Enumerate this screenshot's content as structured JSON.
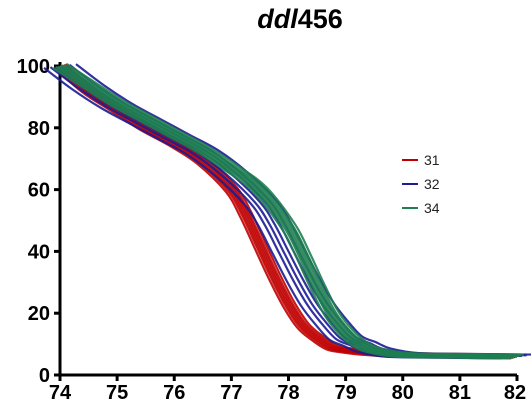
{
  "chart_data": {
    "type": "line",
    "title_italic": "ddl",
    "title_rest": "456",
    "xlim": [
      74,
      82
    ],
    "ylim": [
      0,
      100
    ],
    "x_ticks": [
      "74",
      "75",
      "76",
      "77",
      "78",
      "79",
      "80",
      "81",
      "82"
    ],
    "y_ticks": [
      "0",
      "20",
      "40",
      "60",
      "80",
      "100"
    ],
    "legend_position": "right",
    "colors": {
      "31": "#c00000",
      "32": "#1c1c94",
      "34": "#1e8050"
    },
    "series": [
      {
        "name": "31",
        "color": "#c00000",
        "x": [
          74.0,
          74.5,
          75.0,
          75.5,
          76.0,
          76.5,
          77.0,
          77.25,
          77.5,
          77.75,
          78.0,
          78.25,
          78.5,
          78.75,
          79.0,
          79.5,
          80.0,
          81.0,
          82.0
        ],
        "y": [
          100,
          92,
          86,
          80,
          75,
          69,
          60,
          52,
          42,
          32,
          23,
          16,
          12,
          9,
          8,
          7,
          6.5,
          6.2,
          6.0
        ]
      },
      {
        "name": "32",
        "color": "#1c1c94",
        "x": [
          74.0,
          74.5,
          75.0,
          75.5,
          76.0,
          76.5,
          77.0,
          77.5,
          77.75,
          78.0,
          78.25,
          78.5,
          78.75,
          79.0,
          79.25,
          79.5,
          80.0,
          81.0,
          82.0
        ],
        "y": [
          100,
          93,
          87,
          82,
          77,
          72,
          65,
          56,
          49,
          40,
          31,
          23,
          17,
          12,
          10,
          8,
          6.5,
          6.2,
          6.0
        ]
      },
      {
        "name": "34",
        "color": "#1e8050",
        "x": [
          74.0,
          74.5,
          75.0,
          75.5,
          76.0,
          76.5,
          77.0,
          77.5,
          78.0,
          78.25,
          78.5,
          78.75,
          79.0,
          79.25,
          79.5,
          80.0,
          81.0,
          82.0
        ],
        "y": [
          100,
          94,
          88,
          83,
          78,
          73,
          67,
          60,
          48,
          39,
          29,
          20,
          14,
          10,
          8,
          6.5,
          6.2,
          6.0
        ]
      }
    ]
  }
}
